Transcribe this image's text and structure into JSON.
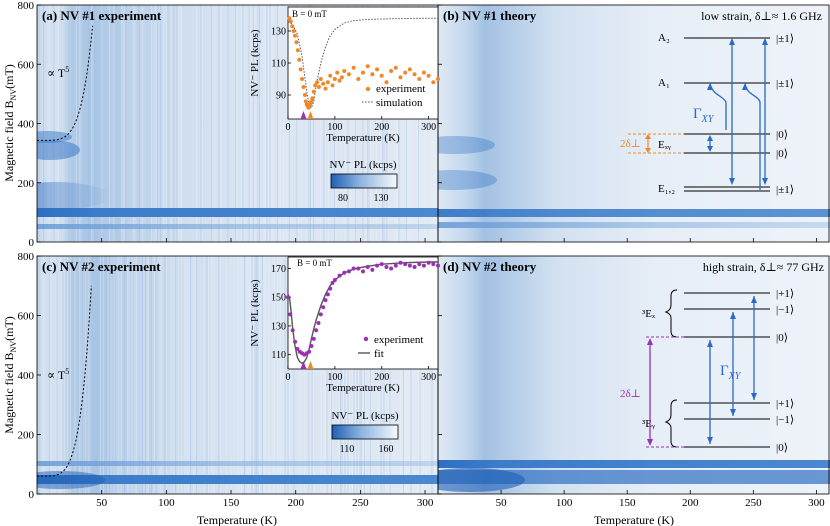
{
  "figure": {
    "ylabel": "Magnetic field B",
    "ylabel_sub": "NV",
    "ylabel_unit": "(mT)",
    "xlabel": "Temperature (K)"
  },
  "panels": {
    "a": {
      "label": "(a) NV #1 experiment",
      "fit_label": "∝ T",
      "fit_exp": "5",
      "colorbar": {
        "label": "NV⁻ PL (kcps)",
        "ticks": [
          "80",
          "130"
        ]
      },
      "inset": {
        "field_label": "B = 0 mT",
        "ylabel": "NV⁻ PL (kcps)",
        "xlabel": "Temperature (K)",
        "legend": [
          "experiment",
          "simulation"
        ]
      }
    },
    "b": {
      "label": "(b) NV #1 theory",
      "strain_label": "low strain, δ⊥≈ 1.6 GHz",
      "levels": {
        "A2": "A₂",
        "A1": "A₁",
        "Exy": "Eₓᵧ",
        "E12": "E₁,₂",
        "pm1_a": "|±1⟩",
        "pm1_b": "|±1⟩",
        "zero_a": "|0⟩",
        "zero_b": "|0⟩",
        "pm1_c": "|±1⟩"
      },
      "gamma": "Γ",
      "gamma_sub": "XY",
      "delta": "2δ⊥"
    },
    "c": {
      "label": "(c) NV #2 experiment",
      "fit_label": "∝ T",
      "fit_exp": "5",
      "colorbar": {
        "label": "NV⁻ PL (kcps)",
        "ticks": [
          "110",
          "160"
        ]
      },
      "inset": {
        "field_label": "B = 0 mT",
        "ylabel": "NV⁻ PL (kcps)",
        "xlabel": "Temperature (K)",
        "legend": [
          "experiment",
          "fit"
        ]
      }
    },
    "d": {
      "label": "(d) NV #2 theory",
      "strain_label": "high strain, δ⊥≈ 77 GHz",
      "levels": {
        "Ex": "³Eₓ",
        "Ey": "³Eᵧ",
        "p1_a": "|+1⟩",
        "m1_a": "|−1⟩",
        "zero_a": "|0⟩",
        "p1_b": "|+1⟩",
        "m1_b": "|−1⟩",
        "zero_b": "|0⟩"
      },
      "gamma": "Γ",
      "gamma_sub": "XY",
      "delta": "2δ⊥"
    }
  },
  "colors": {
    "blue_dark": "#1f5fb6",
    "blue_light": "#e8f0f8",
    "orange": "#f0882a",
    "purple": "#9b2fb5",
    "arrow_blue": "#2a6ac8",
    "fit_gray": "#555555"
  },
  "chart_data": [
    {
      "type": "heatmap",
      "id": "main_axes",
      "x_ticks": [
        50,
        100,
        150,
        200,
        250,
        300
      ],
      "y_ticks": [
        0,
        200,
        400,
        600,
        800
      ],
      "xlim": [
        0,
        310
      ],
      "ylim": [
        0,
        800
      ]
    },
    {
      "type": "scatter",
      "id": "inset_a",
      "xlim": [
        0,
        320
      ],
      "ylim": [
        75,
        145
      ],
      "x_ticks": [
        0,
        100,
        200,
        300
      ],
      "y_ticks": [
        90,
        110,
        130
      ],
      "series": [
        {
          "name": "experiment",
          "x": [
            3,
            6,
            9,
            12,
            15,
            18,
            21,
            24,
            27,
            30,
            33,
            36,
            38,
            40,
            42,
            44,
            46,
            48,
            50,
            52,
            55,
            58,
            62,
            66,
            70,
            75,
            80,
            85,
            90,
            95,
            100,
            105,
            110,
            115,
            120,
            130,
            140,
            150,
            160,
            170,
            180,
            190,
            200,
            210,
            220,
            230,
            240,
            250,
            260,
            270,
            280,
            290,
            300,
            310,
            320
          ],
          "y": [
            138,
            136,
            133,
            130,
            127,
            123,
            118,
            112,
            106,
            100,
            95,
            90,
            86,
            84,
            83,
            82,
            84,
            85,
            86,
            88,
            92,
            96,
            98,
            95,
            100,
            97,
            94,
            98,
            102,
            96,
            100,
            104,
            99,
            101,
            105,
            103,
            107,
            100,
            104,
            108,
            103,
            106,
            102,
            98,
            105,
            107,
            101,
            104,
            106,
            103,
            100,
            104,
            102,
            98,
            100
          ]
        },
        {
          "name": "simulation",
          "x": [
            0,
            10,
            20,
            30,
            35,
            40,
            45,
            50,
            55,
            60,
            70,
            80,
            90,
            100,
            120,
            140,
            160,
            180,
            200,
            250,
            300,
            320
          ],
          "y": [
            136,
            134,
            128,
            114,
            103,
            92,
            84,
            82,
            86,
            96,
            110,
            120,
            127,
            131,
            135,
            136.5,
            137,
            137.3,
            137.5,
            137.8,
            138,
            138
          ]
        }
      ],
      "markers": [
        {
          "x": 33,
          "color": "purple"
        },
        {
          "x": 48,
          "color": "orange"
        }
      ]
    },
    {
      "type": "heatmap",
      "id": "colorbar_a",
      "range": [
        60,
        145
      ],
      "ticks": [
        80,
        130
      ]
    },
    {
      "type": "scatter",
      "id": "inset_c",
      "xlim": [
        0,
        320
      ],
      "ylim": [
        100,
        178
      ],
      "x_ticks": [
        0,
        100,
        200,
        300
      ],
      "y_ticks": [
        110,
        130,
        150,
        170
      ],
      "series": [
        {
          "name": "experiment",
          "x": [
            0,
            5,
            10,
            15,
            20,
            25,
            30,
            35,
            40,
            45,
            50,
            55,
            60,
            65,
            70,
            75,
            80,
            85,
            90,
            95,
            100,
            110,
            120,
            130,
            140,
            150,
            160,
            170,
            180,
            190,
            200,
            210,
            220,
            230,
            240,
            250,
            260,
            270,
            280,
            290,
            300,
            310,
            320
          ],
          "y": [
            150,
            138,
            127,
            119,
            114,
            112,
            111,
            110,
            111,
            112,
            116,
            121,
            127,
            132,
            138,
            143,
            148,
            152,
            156,
            160,
            162,
            165,
            167,
            168,
            170,
            170,
            168,
            171,
            169,
            172,
            173,
            171,
            170,
            172,
            174,
            173,
            172,
            171,
            173,
            172,
            174,
            173,
            172
          ]
        },
        {
          "name": "fit",
          "x": [
            0,
            3,
            6,
            10,
            15,
            20,
            25,
            30,
            35,
            40,
            45,
            50,
            55,
            60,
            70,
            80,
            90,
            100,
            120,
            140,
            160,
            180,
            200,
            250,
            300,
            320
          ],
          "y": [
            152,
            150,
            142,
            128,
            116,
            108,
            105,
            104,
            105,
            108,
            114,
            121,
            128,
            134,
            144,
            152,
            158,
            162,
            167,
            169.5,
            171,
            172,
            173,
            174,
            174.5,
            174.5
          ]
        }
      ],
      "markers": [
        {
          "x": 33,
          "color": "purple"
        },
        {
          "x": 48,
          "color": "orange"
        }
      ]
    },
    {
      "type": "heatmap",
      "id": "colorbar_c",
      "range": [
        95,
        170
      ],
      "ticks": [
        110,
        160
      ]
    },
    {
      "type": "line",
      "id": "t5_curves",
      "a": {
        "T0": 18,
        "B0": 343,
        "Tmax": 43,
        "Bmax": 730
      },
      "c": {
        "T0": 10,
        "B0": 60,
        "Tmax": 42,
        "Bmax": 700
      }
    }
  ]
}
